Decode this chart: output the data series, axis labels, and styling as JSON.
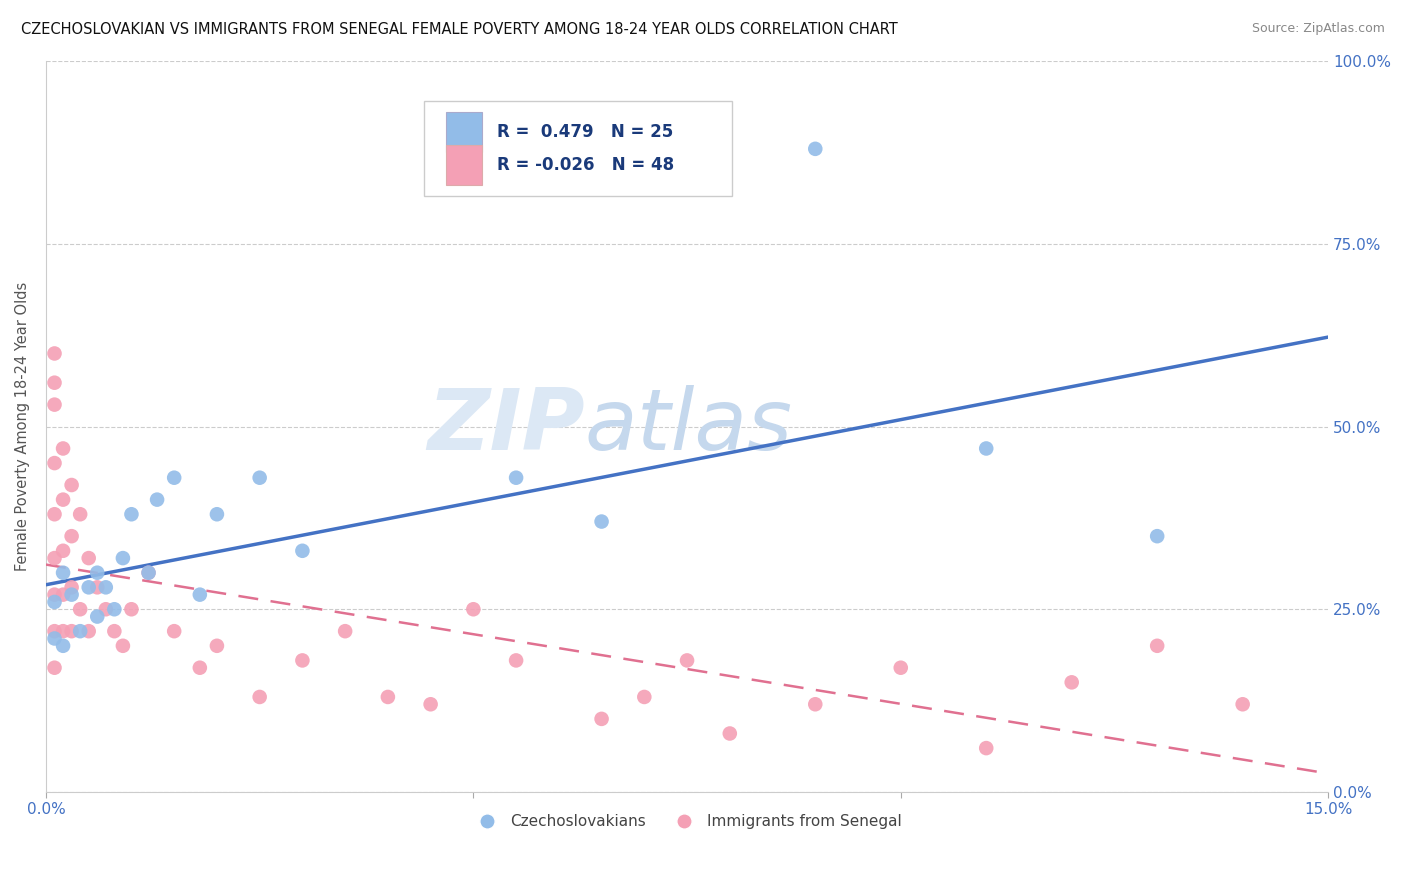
{
  "title": "CZECHOSLOVAKIAN VS IMMIGRANTS FROM SENEGAL FEMALE POVERTY AMONG 18-24 YEAR OLDS CORRELATION CHART",
  "source": "Source: ZipAtlas.com",
  "ylabel": "Female Poverty Among 18-24 Year Olds",
  "x_min": 0.0,
  "x_max": 0.15,
  "y_min": 0.0,
  "y_max": 1.0,
  "x_ticks": [
    0.0,
    0.05,
    0.1,
    0.15
  ],
  "y_ticks": [
    0.0,
    0.25,
    0.5,
    0.75,
    1.0
  ],
  "r_czech": 0.479,
  "n_czech": 25,
  "r_senegal": -0.026,
  "n_senegal": 48,
  "czech_color": "#92bce8",
  "senegal_color": "#f4a0b5",
  "czech_line_color": "#4472c4",
  "senegal_line_color": "#e07090",
  "legend_label_czech": "Czechoslovakians",
  "legend_label_senegal": "Immigrants from Senegal",
  "czech_x": [
    0.001,
    0.001,
    0.002,
    0.002,
    0.003,
    0.004,
    0.005,
    0.006,
    0.006,
    0.007,
    0.008,
    0.009,
    0.01,
    0.012,
    0.013,
    0.015,
    0.018,
    0.02,
    0.025,
    0.03,
    0.055,
    0.065,
    0.09,
    0.11,
    0.13
  ],
  "czech_y": [
    0.21,
    0.26,
    0.2,
    0.3,
    0.27,
    0.22,
    0.28,
    0.24,
    0.3,
    0.28,
    0.25,
    0.32,
    0.38,
    0.3,
    0.4,
    0.43,
    0.27,
    0.38,
    0.43,
    0.33,
    0.43,
    0.37,
    0.88,
    0.47,
    0.35
  ],
  "senegal_x": [
    0.001,
    0.001,
    0.001,
    0.001,
    0.001,
    0.001,
    0.001,
    0.001,
    0.001,
    0.002,
    0.002,
    0.002,
    0.002,
    0.002,
    0.003,
    0.003,
    0.003,
    0.003,
    0.004,
    0.004,
    0.005,
    0.005,
    0.006,
    0.007,
    0.008,
    0.009,
    0.01,
    0.012,
    0.015,
    0.018,
    0.02,
    0.025,
    0.03,
    0.035,
    0.04,
    0.045,
    0.05,
    0.055,
    0.065,
    0.07,
    0.075,
    0.08,
    0.09,
    0.1,
    0.11,
    0.12,
    0.13,
    0.14
  ],
  "senegal_y": [
    0.6,
    0.56,
    0.53,
    0.45,
    0.38,
    0.32,
    0.27,
    0.22,
    0.17,
    0.47,
    0.4,
    0.33,
    0.27,
    0.22,
    0.42,
    0.35,
    0.28,
    0.22,
    0.38,
    0.25,
    0.32,
    0.22,
    0.28,
    0.25,
    0.22,
    0.2,
    0.25,
    0.3,
    0.22,
    0.17,
    0.2,
    0.13,
    0.18,
    0.22,
    0.13,
    0.12,
    0.25,
    0.18,
    0.1,
    0.13,
    0.18,
    0.08,
    0.12,
    0.17,
    0.06,
    0.15,
    0.2,
    0.12
  ]
}
